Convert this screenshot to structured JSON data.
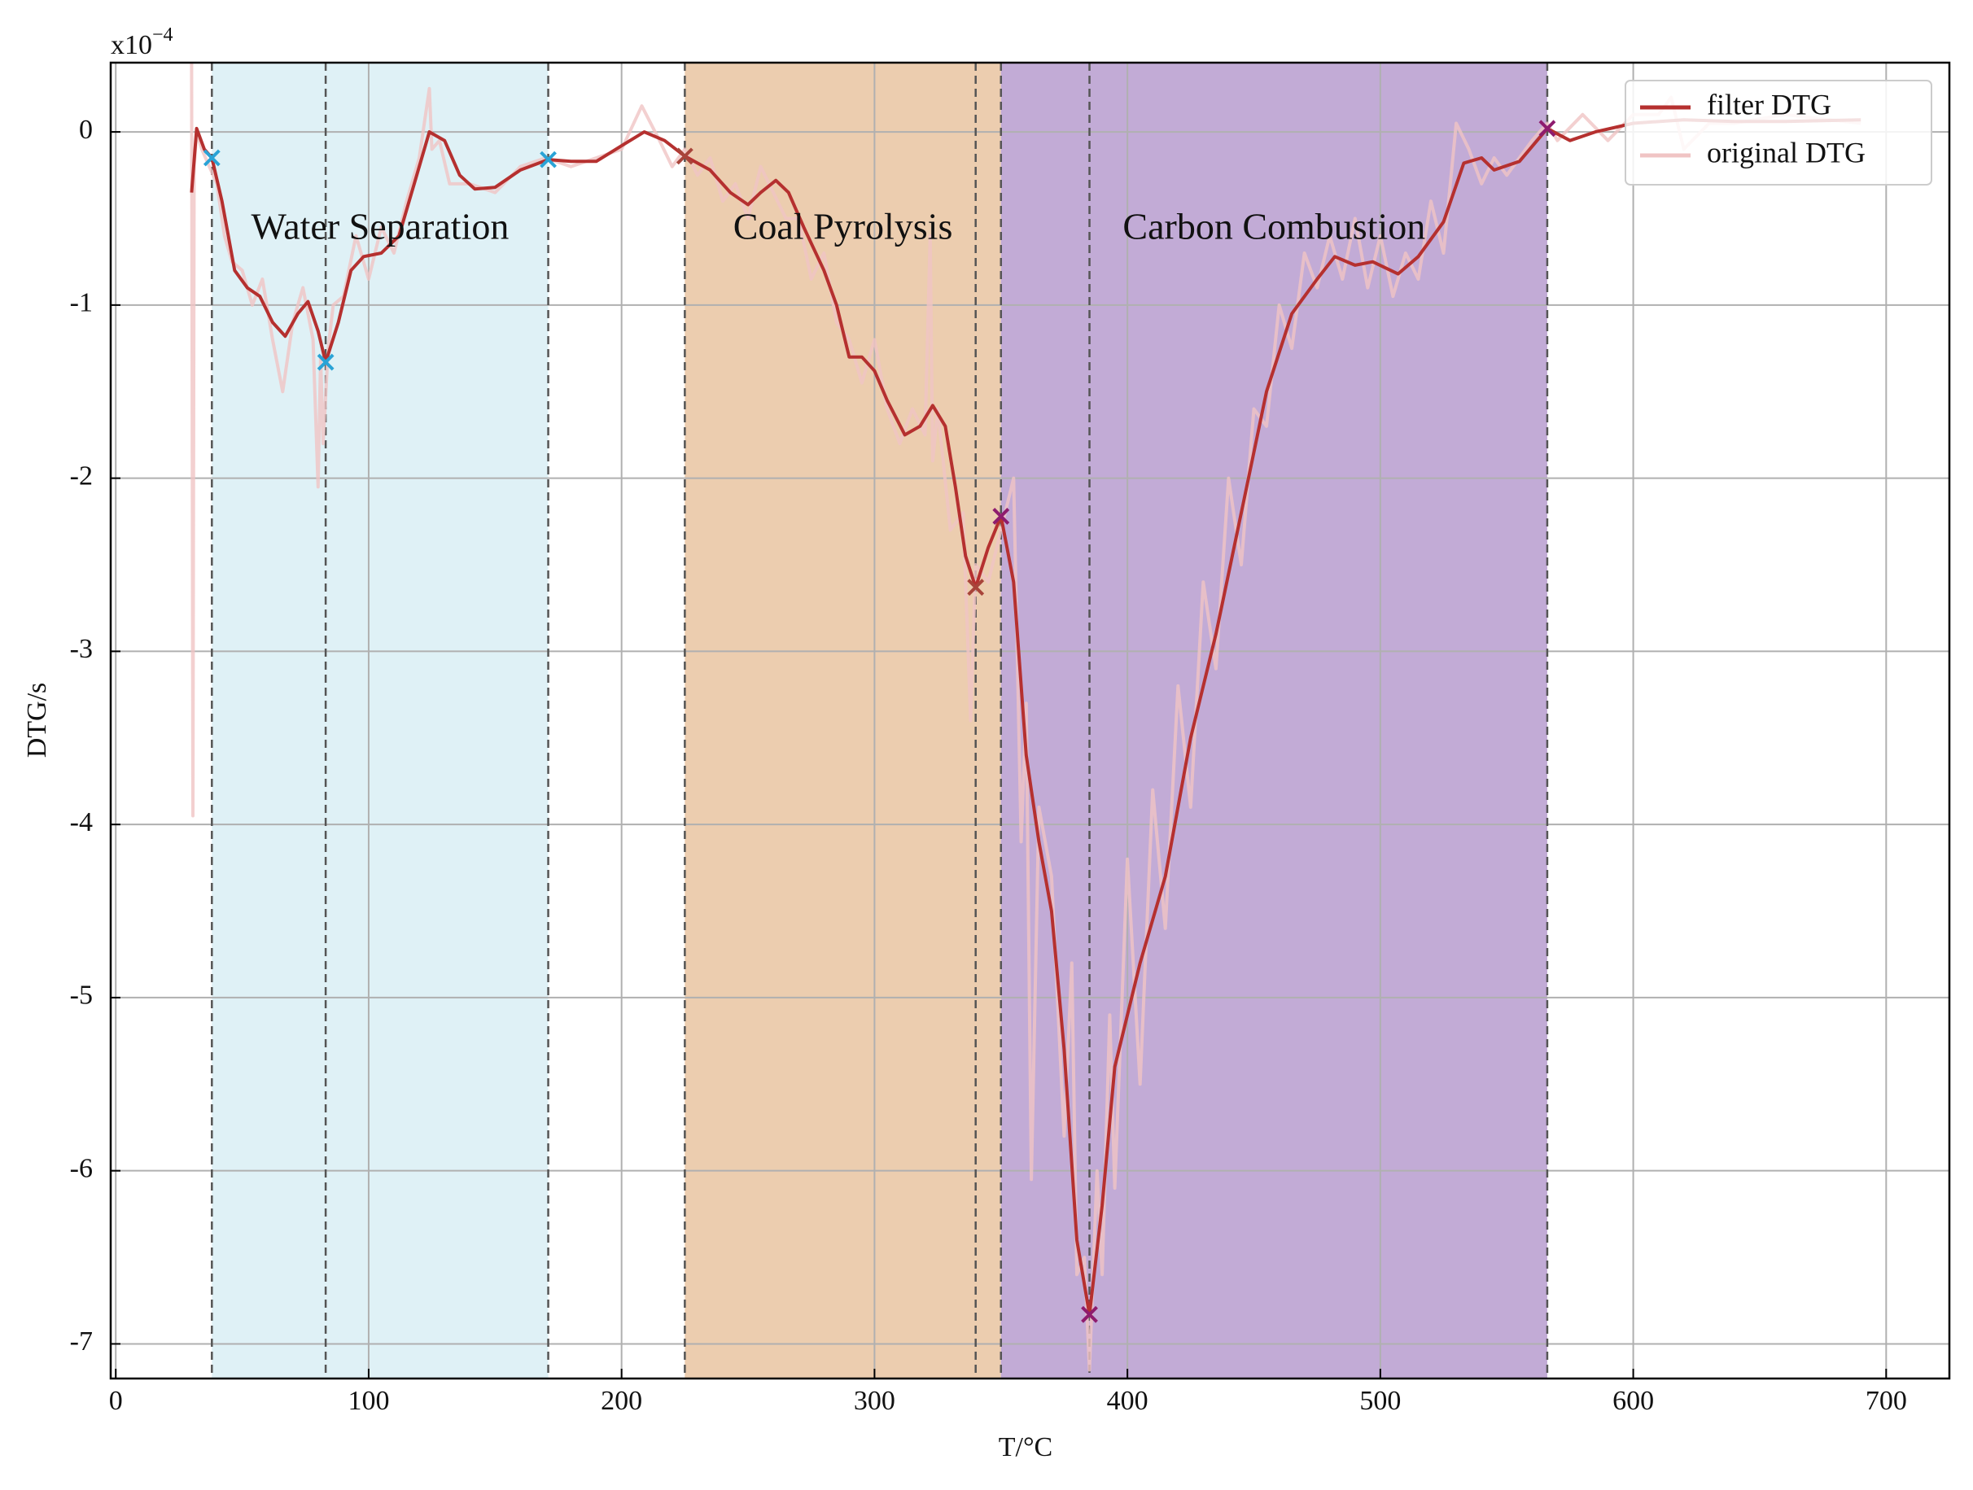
{
  "chart_data": {
    "type": "line",
    "xlabel": "T/°C",
    "ylabel": "DTG/s",
    "y_multiplier": {
      "base": "x10",
      "exponent": "−4"
    },
    "xlim": [
      -2,
      725
    ],
    "ylim": [
      -7.2,
      0.4
    ],
    "xticks": [
      0,
      100,
      200,
      300,
      400,
      500,
      600,
      700
    ],
    "yticks": [
      0,
      -1,
      -2,
      -3,
      -4,
      -5,
      -6,
      -7
    ],
    "grid": true,
    "legend": "upper right",
    "series": [
      {
        "name": "filter DTG",
        "color": "#b5302f",
        "x": [
          30,
          32,
          35,
          38,
          42,
          47,
          52,
          57,
          62,
          67,
          72,
          76,
          80,
          83,
          88,
          93,
          98,
          105,
          112,
          118,
          124,
          130,
          136,
          142,
          150,
          160,
          171,
          180,
          190,
          200,
          209,
          217,
          225,
          235,
          243,
          250,
          255,
          261,
          266,
          272,
          280,
          285,
          290,
          295,
          300,
          305,
          312,
          318,
          323,
          328,
          332,
          336,
          340,
          345,
          350,
          355,
          360,
          365,
          370,
          375,
          380,
          385,
          390,
          395,
          405,
          415,
          425,
          435,
          445,
          455,
          465,
          475,
          482,
          490,
          497,
          507,
          515,
          525,
          533,
          540,
          545,
          555,
          566,
          575,
          585,
          600,
          620,
          640,
          660,
          690
        ],
        "values": [
          -0.35,
          0.02,
          -0.1,
          -0.15,
          -0.4,
          -0.8,
          -0.9,
          -0.95,
          -1.1,
          -1.18,
          -1.05,
          -0.98,
          -1.15,
          -1.33,
          -1.1,
          -0.8,
          -0.72,
          -0.7,
          -0.6,
          -0.3,
          0.0,
          -0.05,
          -0.25,
          -0.33,
          -0.32,
          -0.22,
          -0.16,
          -0.17,
          -0.17,
          -0.08,
          0.0,
          -0.05,
          -0.14,
          -0.22,
          -0.35,
          -0.42,
          -0.35,
          -0.28,
          -0.35,
          -0.55,
          -0.8,
          -1.0,
          -1.3,
          -1.3,
          -1.38,
          -1.55,
          -1.75,
          -1.7,
          -1.58,
          -1.7,
          -2.05,
          -2.45,
          -2.63,
          -2.4,
          -2.22,
          -2.6,
          -3.6,
          -4.1,
          -4.5,
          -5.3,
          -6.4,
          -6.83,
          -6.2,
          -5.4,
          -4.8,
          -4.3,
          -3.5,
          -2.9,
          -2.2,
          -1.5,
          -1.05,
          -0.85,
          -0.72,
          -0.77,
          -0.75,
          -0.82,
          -0.72,
          -0.52,
          -0.18,
          -0.15,
          -0.22,
          -0.17,
          0.02,
          -0.05,
          0.0,
          0.05,
          0.07,
          0.06,
          0.06,
          0.07
        ]
      },
      {
        "name": "original DTG",
        "color": "#f0c4c4",
        "x": [
          30,
          30.5,
          31,
          32,
          34,
          37,
          40,
          43,
          46,
          50,
          54,
          58,
          62,
          66,
          70,
          74,
          78,
          80,
          81,
          82,
          84,
          86,
          90,
          95,
          100,
          105,
          110,
          115,
          120,
          124,
          125,
          128,
          132,
          140,
          150,
          160,
          170,
          180,
          190,
          200,
          208,
          215,
          220,
          225,
          230,
          235,
          240,
          245,
          250,
          255,
          260,
          265,
          270,
          275,
          280,
          285,
          290,
          295,
          300,
          305,
          310,
          315,
          320,
          322,
          323,
          325,
          330,
          335,
          338,
          340,
          345,
          350,
          355,
          358,
          360,
          362,
          365,
          370,
          375,
          378,
          380,
          383,
          385,
          388,
          390,
          393,
          395,
          400,
          405,
          410,
          415,
          420,
          425,
          430,
          435,
          440,
          445,
          450,
          455,
          460,
          465,
          470,
          475,
          480,
          485,
          490,
          495,
          500,
          505,
          510,
          515,
          520,
          525,
          530,
          535,
          540,
          545,
          550,
          560,
          566,
          570,
          580,
          590,
          600,
          610,
          615,
          620,
          630,
          640,
          660,
          690
        ],
        "values": [
          0.4,
          -3.95,
          -0.2,
          0.0,
          -0.1,
          -0.2,
          -0.3,
          -0.6,
          -0.75,
          -0.8,
          -1.0,
          -0.85,
          -1.2,
          -1.5,
          -1.1,
          -0.9,
          -1.2,
          -2.05,
          -1.3,
          -1.8,
          -1.25,
          -1.0,
          -0.95,
          -0.6,
          -0.85,
          -0.55,
          -0.7,
          -0.4,
          -0.15,
          0.25,
          -0.1,
          -0.05,
          -0.3,
          -0.3,
          -0.35,
          -0.2,
          -0.15,
          -0.2,
          -0.15,
          -0.1,
          0.15,
          -0.05,
          -0.2,
          -0.1,
          -0.25,
          -0.15,
          -0.4,
          -0.3,
          -0.5,
          -0.2,
          -0.35,
          -0.5,
          -0.5,
          -0.85,
          -0.7,
          -1.1,
          -1.2,
          -1.45,
          -1.2,
          -1.6,
          -1.8,
          -1.6,
          -1.75,
          -0.6,
          -1.9,
          -1.6,
          -2.3,
          -2.2,
          -3.4,
          -2.5,
          -2.6,
          -2.3,
          -2.0,
          -4.1,
          -3.3,
          -6.05,
          -3.9,
          -4.3,
          -5.8,
          -4.8,
          -6.6,
          -6.5,
          -7.15,
          -6.0,
          -6.6,
          -5.1,
          -6.1,
          -4.2,
          -5.5,
          -3.8,
          -4.6,
          -3.2,
          -3.9,
          -2.6,
          -3.1,
          -2.0,
          -2.5,
          -1.6,
          -1.7,
          -1.0,
          -1.25,
          -0.7,
          -0.9,
          -0.6,
          -0.85,
          -0.5,
          -0.9,
          -0.6,
          -0.95,
          -0.7,
          -0.85,
          -0.4,
          -0.7,
          0.05,
          -0.1,
          -0.3,
          -0.15,
          -0.25,
          -0.05,
          0.05,
          -0.05,
          0.1,
          -0.05,
          0.1,
          0.1,
          0.2,
          -0.1,
          0.05,
          0.05,
          0.1,
          0.05
        ]
      }
    ],
    "regions": [
      {
        "label": "Water Separation",
        "xlim": [
          38,
          171
        ],
        "color": "#dff1f6",
        "markers": {
          "x": [
            38,
            83,
            171
          ],
          "values": [
            -0.15,
            -1.33,
            -0.16
          ],
          "color": "#2aa3d6"
        }
      },
      {
        "label": "Coal Pyrolysis",
        "xlim": [
          225,
          350
        ],
        "color": "#eccdaf",
        "markers": {
          "x": [
            225,
            340
          ],
          "values": [
            -0.14,
            -2.63
          ],
          "color": "#a8443a"
        }
      },
      {
        "label": "Carbon Combustion",
        "xlim": [
          350,
          566
        ],
        "color": "#c2abd6",
        "markers": {
          "x": [
            350,
            385,
            566
          ],
          "values": [
            -2.22,
            -6.83,
            0.02
          ],
          "color": "#8e1c6e"
        }
      }
    ],
    "vlines": [
      38,
      83,
      171,
      225,
      340,
      350,
      385,
      566
    ]
  }
}
